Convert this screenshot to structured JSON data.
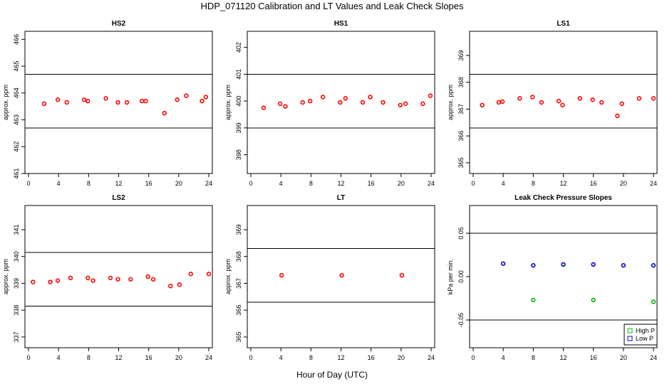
{
  "figure": {
    "title": "HDP_071120  Calibration and LT Values and Leak Check Slopes",
    "xlabel": "Hour of Day (UTC)"
  },
  "chart_data": [
    {
      "type": "scatter",
      "title": "HS2",
      "ylabel": "approx. ppm",
      "xlim": [
        0,
        24
      ],
      "xticks": [
        "0",
        "4",
        "8",
        "12",
        "16",
        "20",
        "24"
      ],
      "ylim": [
        461,
        466.3
      ],
      "yticks": [
        "461",
        "462",
        "463",
        "464",
        "465",
        "466"
      ],
      "hlines": [
        464.7,
        462.7
      ],
      "marker_color": "#ff0000",
      "series": [
        {
          "x": [
            2.1,
            3.9,
            5.1,
            7.4,
            7.9,
            10.3,
            11.9,
            13.1,
            15.1,
            15.6,
            18.1,
            19.8,
            21.0,
            23.1,
            23.6
          ],
          "y": [
            463.6,
            463.75,
            463.65,
            463.75,
            463.7,
            463.8,
            463.65,
            463.65,
            463.7,
            463.7,
            463.25,
            463.75,
            463.9,
            463.7,
            463.85
          ]
        }
      ]
    },
    {
      "type": "scatter",
      "title": "HS1",
      "ylabel": "approx. ppm",
      "xlim": [
        0,
        24
      ],
      "xticks": [
        "0",
        "4",
        "8",
        "12",
        "16",
        "20",
        "24"
      ],
      "ylim": [
        397.3,
        402.6
      ],
      "yticks": [
        "398",
        "399",
        "400",
        "401",
        "402"
      ],
      "hlines": [
        401.0,
        399.0
      ],
      "marker_color": "#ff0000",
      "series": [
        {
          "x": [
            1.7,
            3.9,
            4.6,
            6.9,
            7.9,
            9.6,
            11.9,
            12.6,
            14.9,
            15.9,
            17.6,
            19.9,
            20.6,
            22.9,
            23.9
          ],
          "y": [
            399.75,
            399.9,
            399.8,
            399.95,
            400.0,
            400.15,
            399.95,
            400.1,
            399.95,
            400.15,
            399.95,
            399.85,
            399.9,
            399.9,
            400.2
          ]
        }
      ]
    },
    {
      "type": "scatter",
      "title": "LS1",
      "ylabel": "approx. ppm",
      "xlim": [
        0,
        24
      ],
      "xticks": [
        "0",
        "4",
        "8",
        "12",
        "16",
        "20",
        "24"
      ],
      "ylim": [
        364.6,
        369.9
      ],
      "yticks": [
        "365",
        "366",
        "367",
        "368",
        "369"
      ],
      "hlines": [
        368.3,
        366.3
      ],
      "marker_color": "#ff0000",
      "series": [
        {
          "x": [
            1.2,
            3.4,
            3.9,
            6.2,
            7.9,
            9.1,
            11.4,
            11.9,
            14.2,
            15.9,
            17.1,
            19.2,
            19.8,
            22.1,
            24.0
          ],
          "y": [
            367.15,
            367.25,
            367.28,
            367.4,
            367.45,
            367.25,
            367.3,
            367.15,
            367.4,
            367.35,
            367.25,
            366.75,
            367.2,
            367.4,
            367.4
          ]
        }
      ]
    },
    {
      "type": "scatter",
      "title": "LS2",
      "ylabel": "approx. ppm",
      "xlim": [
        0,
        24
      ],
      "xticks": [
        "0",
        "4",
        "8",
        "12",
        "16",
        "20",
        "24"
      ],
      "ylim": [
        336.6,
        341.9
      ],
      "yticks": [
        "337",
        "338",
        "339",
        "340",
        "341"
      ],
      "hlines": [
        340.15,
        338.15
      ],
      "marker_color": "#ff0000",
      "series": [
        {
          "x": [
            0.6,
            2.9,
            3.9,
            5.6,
            7.9,
            8.6,
            10.9,
            11.9,
            13.6,
            15.9,
            16.6,
            18.9,
            20.1,
            21.6,
            24.0
          ],
          "y": [
            339.05,
            339.05,
            339.1,
            339.2,
            339.2,
            339.1,
            339.2,
            339.15,
            339.15,
            339.25,
            339.15,
            338.9,
            338.95,
            339.35,
            339.35
          ]
        }
      ]
    },
    {
      "type": "scatter",
      "title": "LT",
      "ylabel": "approx. ppm",
      "xlim": [
        0,
        24
      ],
      "xticks": [
        "0",
        "4",
        "8",
        "12",
        "16",
        "20",
        "24"
      ],
      "ylim": [
        364.6,
        369.9
      ],
      "yticks": [
        "365",
        "366",
        "367",
        "368",
        "369"
      ],
      "hlines": [
        368.3,
        366.3
      ],
      "marker_color": "#ff0000",
      "series": [
        {
          "x": [
            4.1,
            12.1,
            20.1
          ],
          "y": [
            367.3,
            367.3,
            367.3
          ]
        }
      ]
    },
    {
      "type": "scatter",
      "title": "Leak Check Pressure Slopes",
      "ylabel": "kPa per min.",
      "xlim": [
        0,
        24
      ],
      "xticks": [
        "0",
        "4",
        "8",
        "12",
        "16",
        "20",
        "24"
      ],
      "ylim": [
        -0.082,
        0.082
      ],
      "yticks": [
        "-0.05",
        "0.00",
        "0.05"
      ],
      "hlines": [
        0.05,
        -0.05
      ],
      "legend": {
        "position": "bottom-right"
      },
      "series": [
        {
          "name": "High P",
          "color": "#00bb00",
          "x": [
            8,
            16,
            24
          ],
          "y": [
            -0.027,
            -0.027,
            -0.029
          ]
        },
        {
          "name": "Low P",
          "color": "#0000cc",
          "x": [
            4,
            8,
            12,
            16,
            20,
            24
          ],
          "y": [
            0.015,
            0.013,
            0.014,
            0.014,
            0.013,
            0.013
          ]
        }
      ]
    }
  ]
}
